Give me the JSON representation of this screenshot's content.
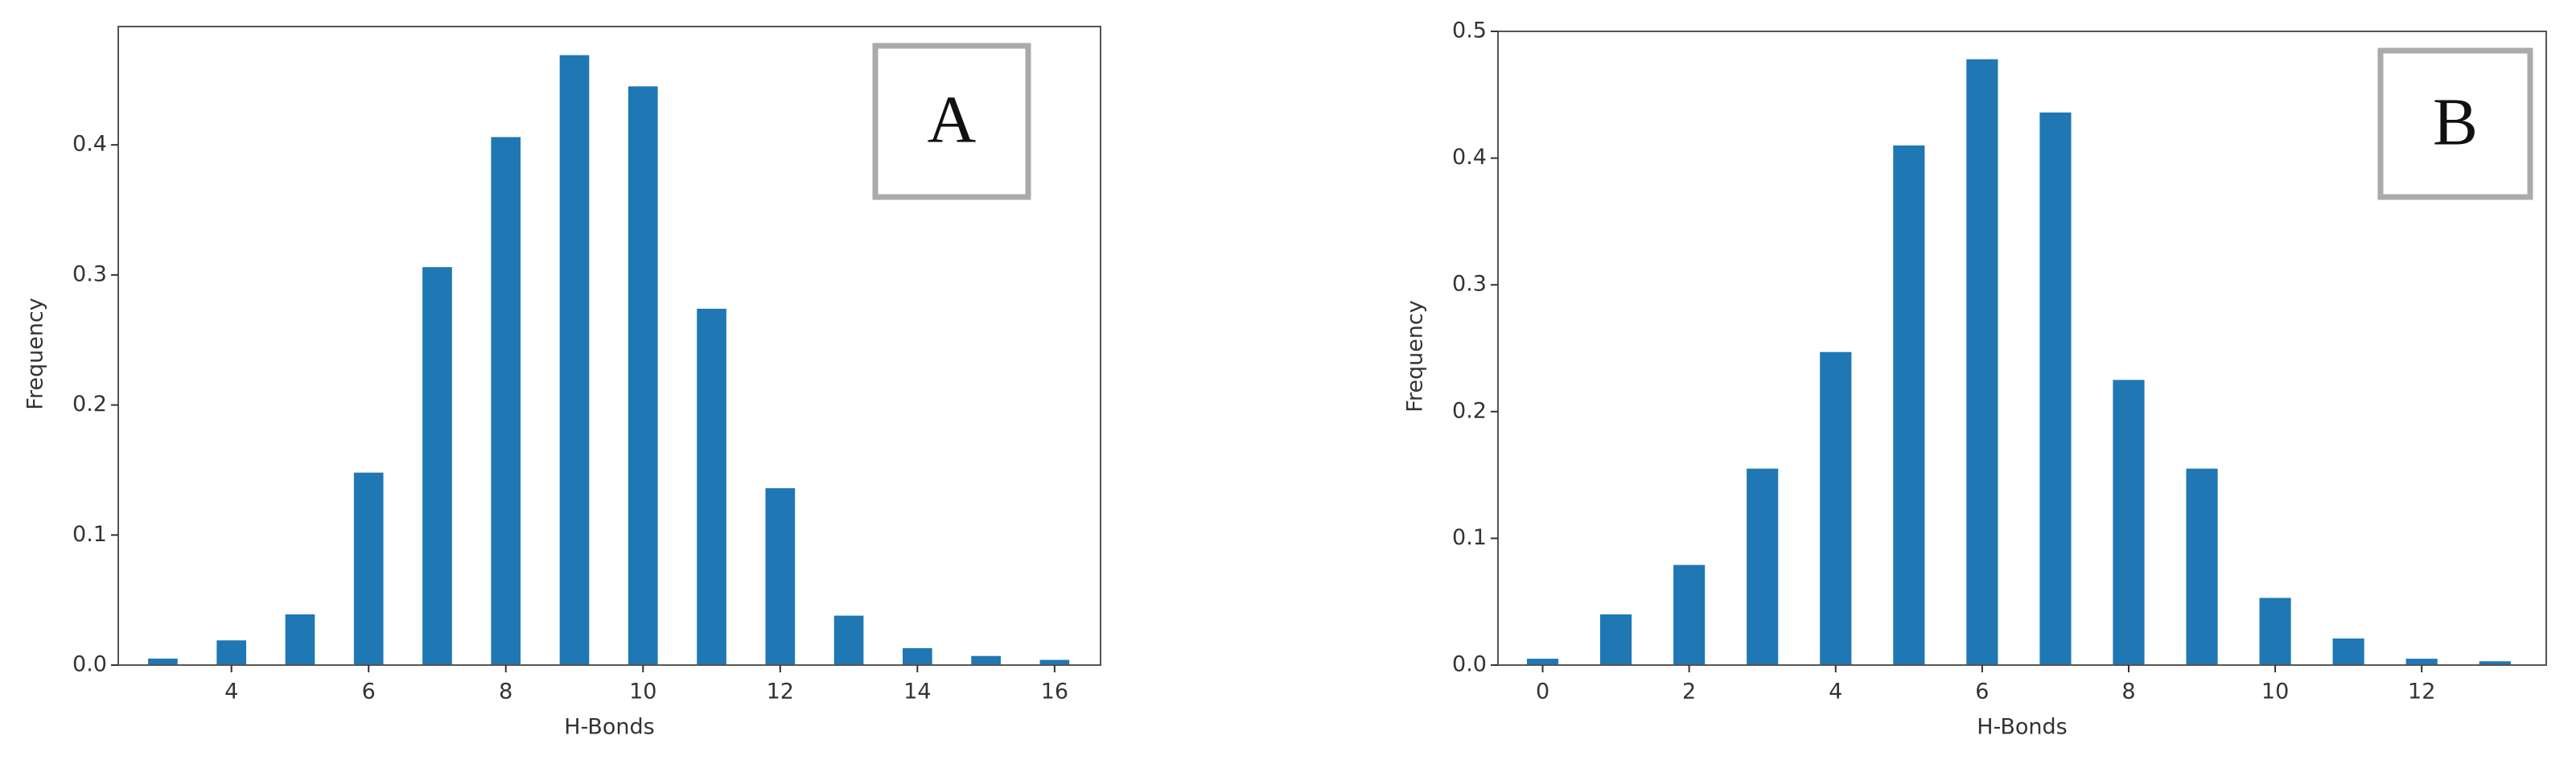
{
  "chart_data": [
    {
      "type": "bar",
      "x_label": "H-Bonds",
      "y_label": "Frequency",
      "annotation": "A",
      "color": "#1f77b4",
      "x": [
        3,
        4,
        5,
        6,
        7,
        8,
        9,
        10,
        11,
        12,
        13,
        14,
        15,
        16
      ],
      "values": [
        0.005,
        0.019,
        0.039,
        0.148,
        0.306,
        0.406,
        0.469,
        0.445,
        0.274,
        0.136,
        0.038,
        0.013,
        0.007,
        0.004
      ],
      "xlim": [
        2.35,
        16.67
      ],
      "xticks": [
        4,
        6,
        8,
        10,
        12,
        14,
        16
      ],
      "ylim": [
        0,
        0.491
      ],
      "yticks": [
        {
          "value": 0,
          "label": "0.0"
        },
        0.1,
        0.2,
        0.3,
        0.4
      ]
    },
    {
      "type": "bar",
      "x_label": "H-Bonds",
      "y_label": "Frequency",
      "annotation": "B",
      "color": "#1f77b4",
      "x": [
        0,
        1,
        2,
        3,
        4,
        5,
        6,
        7,
        8,
        9,
        10,
        11,
        12,
        13
      ],
      "values": [
        0.005,
        0.04,
        0.079,
        0.155,
        0.247,
        0.41,
        0.478,
        0.436,
        0.225,
        0.155,
        0.053,
        0.021,
        0.005,
        0.003
      ],
      "xlim": [
        -0.61,
        13.7
      ],
      "xticks": [
        0,
        2,
        4,
        6,
        8,
        10,
        12
      ],
      "ylim": [
        0,
        0.5
      ],
      "yticks": [
        {
          "value": 0,
          "label": "0.0"
        },
        0.1,
        0.2,
        0.3,
        0.4,
        0.5
      ]
    }
  ]
}
